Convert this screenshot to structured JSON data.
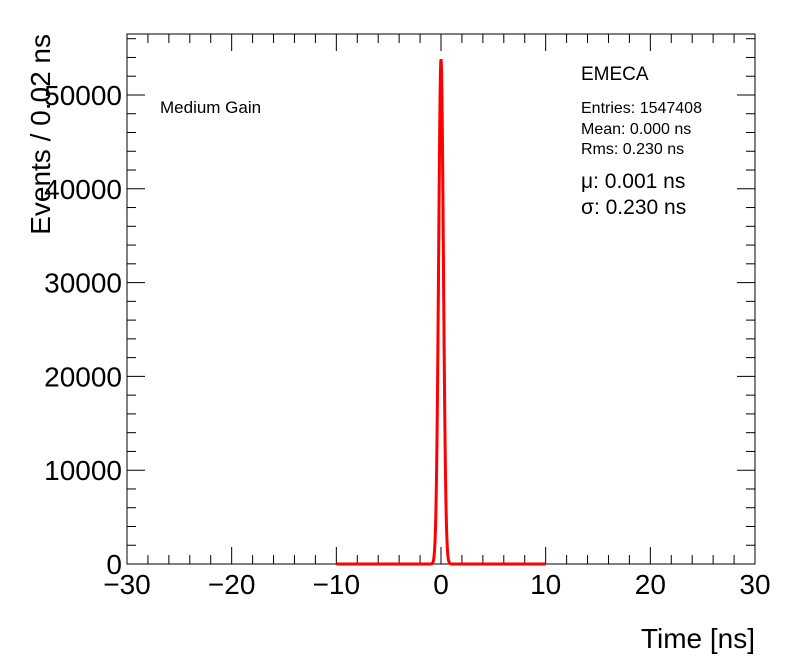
{
  "chart_data": {
    "type": "line",
    "xlabel": "Time [ns]",
    "ylabel": "Events / 0.02 ns",
    "xlim": [
      -30,
      30
    ],
    "ylim": [
      0,
      56500
    ],
    "x_ticks": [
      -30,
      -20,
      -10,
      0,
      10,
      20,
      30
    ],
    "x_tick_labels": [
      "−30",
      "−20",
      "−10",
      "0",
      "10",
      "20",
      "30"
    ],
    "y_ticks": [
      0,
      10000,
      20000,
      30000,
      40000,
      50000
    ],
    "y_tick_labels": [
      "0",
      "10000",
      "20000",
      "30000",
      "40000",
      "50000"
    ],
    "grid": false,
    "annotations": {
      "label": "Medium Gain",
      "partition": "EMECA",
      "entries": "Entries: 1547408",
      "mean": "Mean: 0.000 ns",
      "rms": "Rms: 0.230 ns",
      "mu": "μ: 0.001 ns",
      "sigma": "σ: 0.230 ns"
    },
    "series": [
      {
        "style": "histogram",
        "color": "#000000",
        "x": [
          -1.0,
          -0.8,
          -0.6,
          -0.5,
          -0.4,
          -0.3,
          -0.2,
          -0.14,
          -0.1,
          -0.06,
          -0.02,
          0.0,
          0.02,
          0.06,
          0.1,
          0.14,
          0.2,
          0.3,
          0.4,
          0.5,
          0.6,
          0.8,
          1.0
        ],
        "values": [
          0,
          150,
          1400,
          3200,
          8000,
          15600,
          27500,
          35000,
          41200,
          47500,
          52800,
          53800,
          52000,
          48600,
          41800,
          35600,
          27800,
          16000,
          8500,
          3300,
          1400,
          150,
          0
        ]
      },
      {
        "style": "fit",
        "color": "#ff0000",
        "x_range": [
          -10,
          10
        ],
        "mu": 0.001,
        "sigma": 0.23,
        "amplitude": 53800
      }
    ]
  }
}
